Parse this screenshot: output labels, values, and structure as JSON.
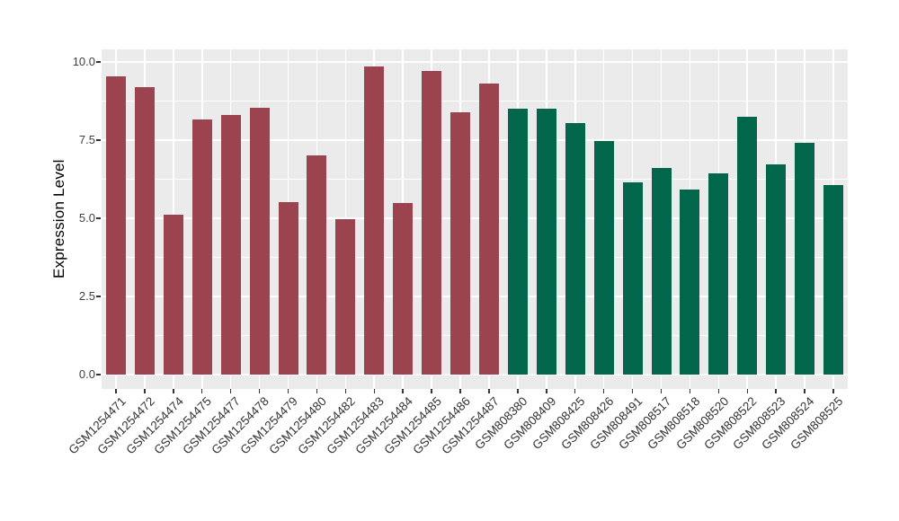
{
  "figure": {
    "background": "#FFFFFF",
    "panel_background": "#EBEBEB",
    "gridline_color": "#FFFFFF",
    "tick_mark_color": "#333333",
    "axis_text_color": "#404040",
    "axis_title_color": "#000000"
  },
  "chart_data": {
    "type": "bar",
    "title": "",
    "xlabel": "",
    "ylabel": "Expression Level",
    "ylim": [
      0,
      10
    ],
    "grid": true,
    "legend_position": "none",
    "ytick_labels": [
      "0.0",
      "2.5",
      "5.0",
      "7.5",
      "10.0"
    ],
    "ytick_values": [
      0,
      2.5,
      5,
      7.5,
      10
    ],
    "minor_gridlines": [
      1.25,
      3.75,
      6.25,
      8.75
    ],
    "categories": [
      "GSM1254471",
      "GSM1254472",
      "GSM1254474",
      "GSM1254475",
      "GSM1254477",
      "GSM1254478",
      "GSM1254479",
      "GSM1254480",
      "GSM1254482",
      "GSM1254483",
      "GSM1254484",
      "GSM1254485",
      "GSM1254486",
      "GSM1254487",
      "GSM808380",
      "GSM808409",
      "GSM808425",
      "GSM808426",
      "GSM808491",
      "GSM808517",
      "GSM808518",
      "GSM808520",
      "GSM808522",
      "GSM808523",
      "GSM808524",
      "GSM808525"
    ],
    "values": [
      9.54,
      9.2,
      5.11,
      8.16,
      8.3,
      8.53,
      5.53,
      7.02,
      4.97,
      9.86,
      5.5,
      9.71,
      8.39,
      9.31,
      8.51,
      8.51,
      8.05,
      7.47,
      6.15,
      6.61,
      5.92,
      6.44,
      8.25,
      6.72,
      7.41,
      6.06
    ],
    "groups": [
      "maroon",
      "maroon",
      "maroon",
      "maroon",
      "maroon",
      "maroon",
      "maroon",
      "maroon",
      "maroon",
      "maroon",
      "maroon",
      "maroon",
      "maroon",
      "maroon",
      "green",
      "green",
      "green",
      "green",
      "green",
      "green",
      "green",
      "green",
      "green",
      "green",
      "green",
      "green"
    ],
    "palette": {
      "maroon": "#9B4450",
      "green": "#02664A"
    }
  }
}
